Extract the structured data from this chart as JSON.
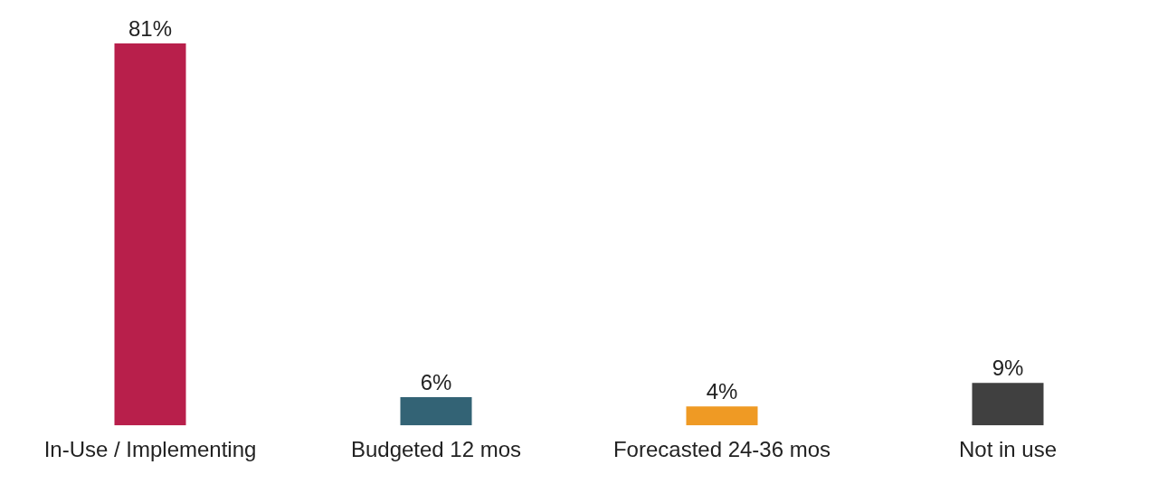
{
  "chart_data": {
    "type": "bar",
    "categories": [
      "In-Use / Implementing",
      "Budgeted 12 mos",
      "Forecasted 24-36 mos",
      "Not in use"
    ],
    "values": [
      81,
      6,
      4,
      9
    ],
    "colors": [
      "#b81f4b",
      "#336375",
      "#ef9a24",
      "#404040"
    ],
    "value_labels": [
      "81%",
      "6%",
      "4%",
      "9%"
    ],
    "grid": false,
    "legend": false
  }
}
